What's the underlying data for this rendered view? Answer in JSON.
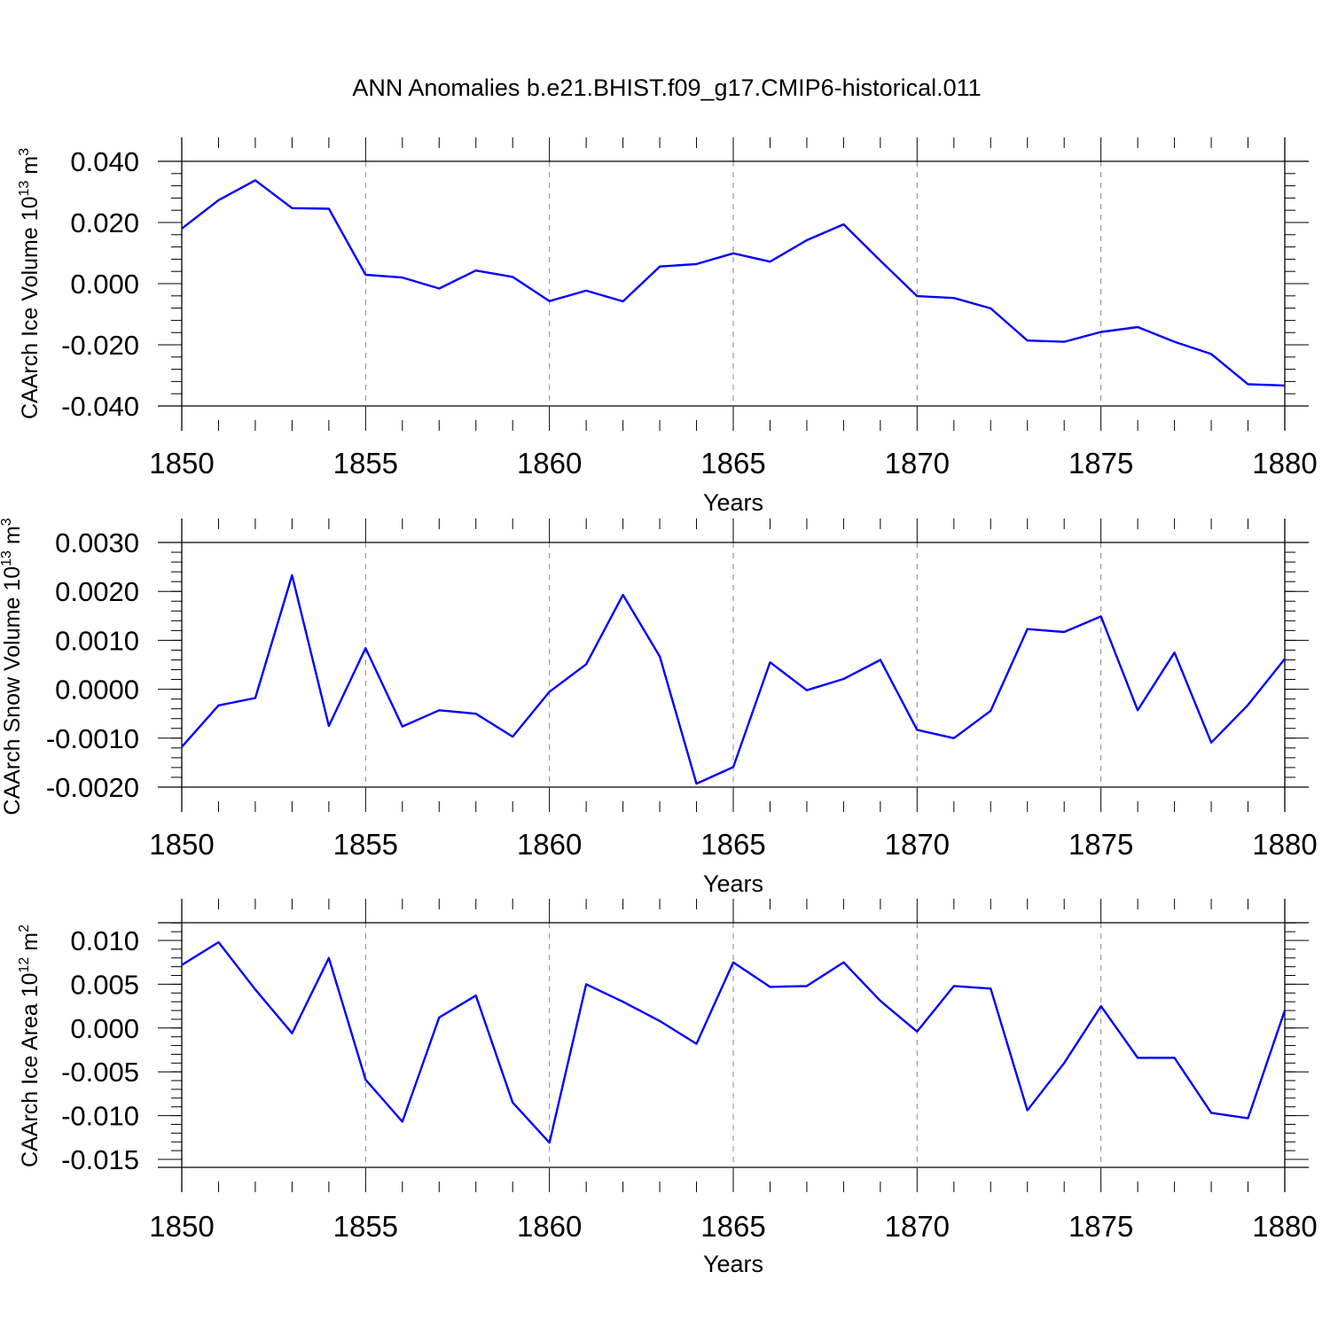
{
  "title": "ANN Anomalies b.e21.BHIST.f09_g17.CMIP6-historical.011",
  "colors": {
    "line": "#0000ff",
    "axis": "#000000",
    "grid": "#888888"
  },
  "chart_data": [
    {
      "type": "line",
      "title": "ANN Anomalies b.e21.BHIST.f09_g17.CMIP6-historical.011",
      "xlabel": "Years",
      "ylabel": "CAArch Ice Volume 10",
      "ylabel_exp": "13",
      "ylabel_unit": " m",
      "ylabel_unit_exp": "3",
      "xlim": [
        1850,
        1880
      ],
      "ylim": [
        -0.04,
        0.04
      ],
      "x_ticks": [
        "1850",
        "1855",
        "1860",
        "1865",
        "1870",
        "1875",
        "1880"
      ],
      "y_tick_values": [
        -0.04,
        -0.02,
        0.0,
        0.02,
        0.04
      ],
      "y_ticks": [
        "-0.040",
        "-0.020",
        "0.000",
        "0.020",
        "0.040"
      ],
      "y_minor_step": 0.004,
      "grid": "dashed vertical at major x ticks",
      "x": [
        1850,
        1851,
        1852,
        1853,
        1854,
        1855,
        1856,
        1857,
        1858,
        1859,
        1860,
        1861,
        1862,
        1863,
        1864,
        1865,
        1866,
        1867,
        1868,
        1869,
        1870,
        1871,
        1872,
        1873,
        1874,
        1875,
        1876,
        1877,
        1878,
        1879,
        1880
      ],
      "series": [
        {
          "name": "CAArch Ice Volume",
          "values": [
            0.018,
            0.0273,
            0.0338,
            0.0247,
            0.0245,
            0.0029,
            0.002,
            -0.0016,
            0.0043,
            0.0022,
            -0.0057,
            -0.0023,
            -0.0058,
            0.0056,
            0.0064,
            0.0099,
            0.0072,
            0.0142,
            0.0194,
            0.0075,
            -0.0041,
            -0.0047,
            -0.0081,
            -0.0186,
            -0.019,
            -0.0158,
            -0.0142,
            -0.019,
            -0.023,
            -0.0329,
            -0.0333
          ]
        }
      ]
    },
    {
      "type": "line",
      "xlabel": "Years",
      "ylabel": "CAArch Snow Volume 10",
      "ylabel_exp": "13",
      "ylabel_unit": " m",
      "ylabel_unit_exp": "3",
      "xlim": [
        1850,
        1880
      ],
      "ylim": [
        -0.002,
        0.003
      ],
      "x_ticks": [
        "1850",
        "1855",
        "1860",
        "1865",
        "1870",
        "1875",
        "1880"
      ],
      "y_tick_values": [
        -0.002,
        -0.001,
        0.0,
        0.001,
        0.002,
        0.003
      ],
      "y_ticks": [
        "-0.0020",
        "-0.0010",
        "0.0000",
        "0.0010",
        "0.0020",
        "0.0030"
      ],
      "y_minor_step": 0.0002,
      "grid": "dashed vertical at major x ticks",
      "x": [
        1850,
        1851,
        1852,
        1853,
        1854,
        1855,
        1856,
        1857,
        1858,
        1859,
        1860,
        1861,
        1862,
        1863,
        1864,
        1865,
        1866,
        1867,
        1868,
        1869,
        1870,
        1871,
        1872,
        1873,
        1874,
        1875,
        1876,
        1877,
        1878,
        1879,
        1880
      ],
      "series": [
        {
          "name": "CAArch Snow Volume",
          "values": [
            -0.00118,
            -0.00033,
            -0.00018,
            0.00233,
            -0.00075,
            0.00084,
            -0.00076,
            -0.00043,
            -0.0005,
            -0.00097,
            -5e-05,
            0.00051,
            0.00193,
            0.00067,
            -0.00193,
            -0.00159,
            0.00055,
            -2e-05,
            0.00021,
            0.0006,
            -0.00083,
            -0.001,
            -0.00044,
            0.00123,
            0.00117,
            0.00149,
            -0.00043,
            0.00075,
            -0.00109,
            -0.00032,
            0.00062
          ]
        }
      ]
    },
    {
      "type": "line",
      "xlabel": "Years",
      "ylabel": "CAArch Ice Area 10",
      "ylabel_exp": "12",
      "ylabel_unit": " m",
      "ylabel_unit_exp": "2",
      "xlim": [
        1850,
        1880
      ],
      "ylim": [
        -0.0158,
        0.012
      ],
      "x_ticks": [
        "1850",
        "1855",
        "1860",
        "1865",
        "1870",
        "1875",
        "1880"
      ],
      "y_tick_values": [
        -0.015,
        -0.01,
        -0.005,
        0.0,
        0.005,
        0.01
      ],
      "y_ticks": [
        "-0.015",
        "-0.010",
        "-0.005",
        "0.000",
        "0.005",
        "0.010"
      ],
      "y_minor_step": 0.001,
      "grid": "dashed vertical at major x ticks",
      "x": [
        1850,
        1851,
        1852,
        1853,
        1854,
        1855,
        1856,
        1857,
        1858,
        1859,
        1860,
        1861,
        1862,
        1863,
        1864,
        1865,
        1866,
        1867,
        1868,
        1869,
        1870,
        1871,
        1872,
        1873,
        1874,
        1875,
        1876,
        1877,
        1878,
        1879,
        1880
      ],
      "series": [
        {
          "name": "CAArch Ice Area",
          "values": [
            0.0072,
            0.0098,
            0.0044,
            -0.0006,
            0.008,
            -0.0059,
            -0.0107,
            0.0012,
            0.0037,
            -0.0085,
            -0.0131,
            0.005,
            0.003,
            0.0008,
            -0.0018,
            0.0075,
            0.0047,
            0.0048,
            0.0075,
            0.0031,
            -0.0004,
            0.0048,
            0.0045,
            -0.0094,
            -0.004,
            0.0025,
            -0.0034,
            -0.0034,
            -0.0097,
            -0.0103,
            0.002
          ]
        }
      ]
    }
  ]
}
